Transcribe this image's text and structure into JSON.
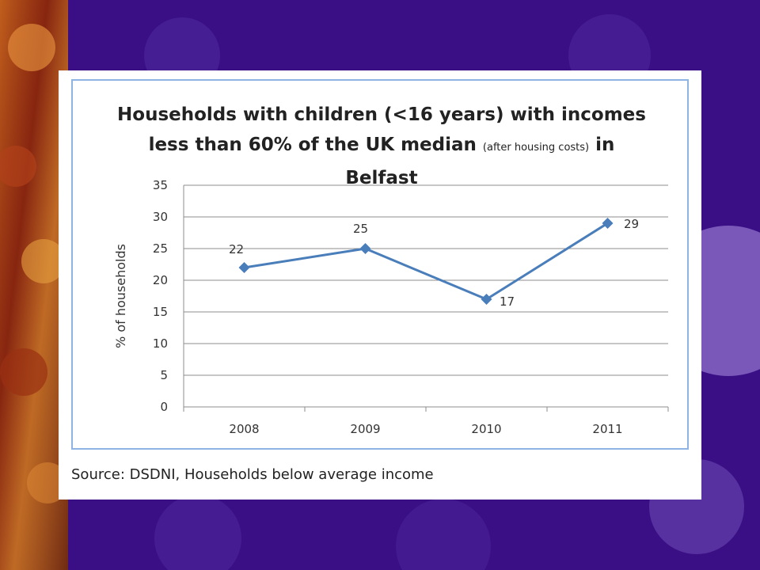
{
  "source_note": "Source: DSDNI, Households below average income",
  "chart_data": {
    "type": "line",
    "title_main_1": "Households with children (<16 years) with incomes",
    "title_main_2": "less than 60% of the UK median",
    "title_small": "(after housing costs)",
    "title_in": "in",
    "title_line_3": "Belfast",
    "ylabel": "% of households",
    "xlabel": "",
    "categories": [
      "2008",
      "2009",
      "2010",
      "2011"
    ],
    "values": [
      22,
      25,
      17,
      29
    ],
    "data_labels": [
      "22",
      "25",
      "17",
      "29"
    ],
    "ylim": [
      0,
      35
    ],
    "yticks": [
      "0",
      "5",
      "10",
      "15",
      "20",
      "25",
      "30",
      "35"
    ],
    "grid": true,
    "line_color": "#4a7ebb",
    "legend": "none"
  },
  "colors": {
    "background": "#3a0f86",
    "chart_border": "#8eb4e3",
    "gridline": "#8c8c8c"
  }
}
